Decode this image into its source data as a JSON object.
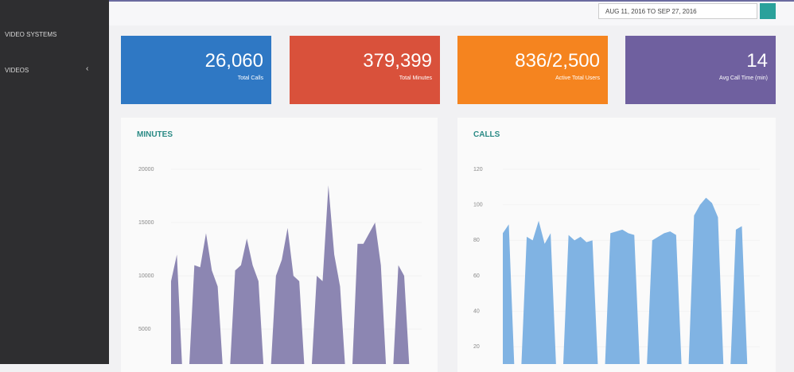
{
  "sidebar": {
    "items": [
      "VIDEO SYSTEMS",
      "VIDEOS"
    ]
  },
  "date_range": "AUG 11, 2016 TO SEP 27, 2016",
  "stats": [
    {
      "value": "26,060",
      "label": "Total Calls",
      "color": "#2f78c4"
    },
    {
      "value": "379,399",
      "label": "Total Minutes",
      "color": "#d9513b"
    },
    {
      "value": "836/2,500",
      "label": "Active Total Users",
      "color": "#f5841f"
    },
    {
      "value": "14",
      "label": "Avg Call Time (min)",
      "color": "#6f609f"
    }
  ],
  "charts": [
    {
      "type": "area",
      "title": "MINUTES",
      "color": "#8c86b2",
      "ylim": [
        0,
        20000
      ],
      "yticks": [
        5000,
        10000,
        15000,
        20000
      ],
      "values": [
        9500,
        12000,
        300,
        200,
        11000,
        10800,
        14000,
        10500,
        9000,
        300,
        200,
        10500,
        11000,
        13500,
        11000,
        9500,
        300,
        200,
        10000,
        11500,
        14500,
        10000,
        9500,
        300,
        200,
        10000,
        9500,
        18500,
        12000,
        9000,
        300,
        200,
        13000,
        13000,
        14000,
        15000,
        11000,
        300,
        200,
        11000,
        10000,
        300,
        200,
        100
      ]
    },
    {
      "type": "area",
      "title": "CALLS",
      "color": "#80b3e3",
      "ylim": [
        0,
        120
      ],
      "yticks": [
        20,
        40,
        60,
        80,
        100,
        120
      ],
      "values": [
        84,
        89,
        2,
        1,
        82,
        80,
        91,
        78,
        84,
        2,
        1,
        83,
        80,
        82,
        79,
        80,
        2,
        1,
        84,
        85,
        86,
        84,
        83,
        2,
        1,
        80,
        82,
        84,
        85,
        83,
        2,
        1,
        94,
        100,
        104,
        101,
        93,
        2,
        1,
        86,
        88,
        2,
        1,
        1
      ]
    }
  ]
}
